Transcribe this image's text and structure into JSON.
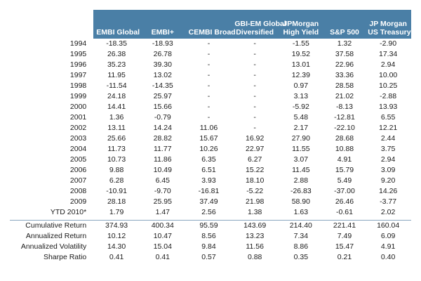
{
  "chart_data": {
    "type": "table",
    "columns": [
      {
        "lines": [
          "EMBI Global"
        ]
      },
      {
        "lines": [
          "EMBI+"
        ]
      },
      {
        "lines": [
          "CEMBI Broad"
        ]
      },
      {
        "lines": [
          "GBI-EM Global",
          "Diversified"
        ]
      },
      {
        "lines": [
          "JPMorgan",
          "High Yield"
        ]
      },
      {
        "lines": [
          "S&P 500"
        ]
      },
      {
        "lines": [
          "JP Morgan",
          "US Treasury"
        ]
      }
    ],
    "rows": [
      {
        "label": "1994",
        "values": [
          "-18.35",
          "-18.93",
          "-",
          "-",
          "-1.55",
          "1.32",
          "-2.90"
        ]
      },
      {
        "label": "1995",
        "values": [
          "26.38",
          "26.78",
          "-",
          "-",
          "19.52",
          "37.58",
          "17.34"
        ]
      },
      {
        "label": "1996",
        "values": [
          "35.23",
          "39.30",
          "-",
          "-",
          "13.01",
          "22.96",
          "2.94"
        ]
      },
      {
        "label": "1997",
        "values": [
          "11.95",
          "13.02",
          "-",
          "-",
          "12.39",
          "33.36",
          "10.00"
        ]
      },
      {
        "label": "1998",
        "values": [
          "-11.54",
          "-14.35",
          "-",
          "-",
          "0.97",
          "28.58",
          "10.25"
        ]
      },
      {
        "label": "1999",
        "values": [
          "24.18",
          "25.97",
          "-",
          "-",
          "3.13",
          "21.02",
          "-2.88"
        ]
      },
      {
        "label": "2000",
        "values": [
          "14.41",
          "15.66",
          "-",
          "-",
          "-5.92",
          "-8.13",
          "13.93"
        ]
      },
      {
        "label": "2001",
        "values": [
          "1.36",
          "-0.79",
          "-",
          "-",
          "5.48",
          "-12.81",
          "6.55"
        ]
      },
      {
        "label": "2002",
        "values": [
          "13.11",
          "14.24",
          "11.06",
          "-",
          "2.17",
          "-22.10",
          "12.21"
        ]
      },
      {
        "label": "2003",
        "values": [
          "25.66",
          "28.82",
          "15.67",
          "16.92",
          "27.90",
          "28.68",
          "2.44"
        ]
      },
      {
        "label": "2004",
        "values": [
          "11.73",
          "11.77",
          "10.26",
          "22.97",
          "11.55",
          "10.88",
          "3.75"
        ]
      },
      {
        "label": "2005",
        "values": [
          "10.73",
          "11.86",
          "6.35",
          "6.27",
          "3.07",
          "4.91",
          "2.94"
        ]
      },
      {
        "label": "2006",
        "values": [
          "9.88",
          "10.49",
          "6.51",
          "15.22",
          "11.45",
          "15.79",
          "3.09"
        ]
      },
      {
        "label": "2007",
        "values": [
          "6.28",
          "6.45",
          "3.93",
          "18.10",
          "2.88",
          "5.49",
          "9.20"
        ]
      },
      {
        "label": "2008",
        "values": [
          "-10.91",
          "-9.70",
          "-16.81",
          "-5.22",
          "-26.83",
          "-37.00",
          "14.26"
        ]
      },
      {
        "label": "2009",
        "values": [
          "28.18",
          "25.95",
          "37.49",
          "21.98",
          "58.90",
          "26.46",
          "-3.77"
        ]
      },
      {
        "label": "YTD 2010*",
        "values": [
          "1.79",
          "1.47",
          "2.56",
          "1.38",
          "1.63",
          "-0.61",
          "2.02"
        ]
      }
    ],
    "summary_rows": [
      {
        "label": "Cumulative Return",
        "values": [
          "374.93",
          "400.34",
          "95.59",
          "143.69",
          "214.40",
          "221.41",
          "160.04"
        ]
      },
      {
        "label": "Annualized Return",
        "values": [
          "10.12",
          "10.47",
          "8.56",
          "13.23",
          "7.34",
          "7.49",
          "6.09"
        ]
      },
      {
        "label": "Annualized Volatility",
        "values": [
          "14.30",
          "15.04",
          "9.84",
          "11.56",
          "8.86",
          "15.47",
          "4.91"
        ]
      },
      {
        "label": "Sharpe Ratio",
        "values": [
          "0.41",
          "0.41",
          "0.57",
          "0.88",
          "0.35",
          "0.21",
          "0.40"
        ]
      }
    ]
  },
  "colors": {
    "header_background": "#4a7fa6",
    "header_text": "#ffffff",
    "divider": "#8aa7bf"
  }
}
